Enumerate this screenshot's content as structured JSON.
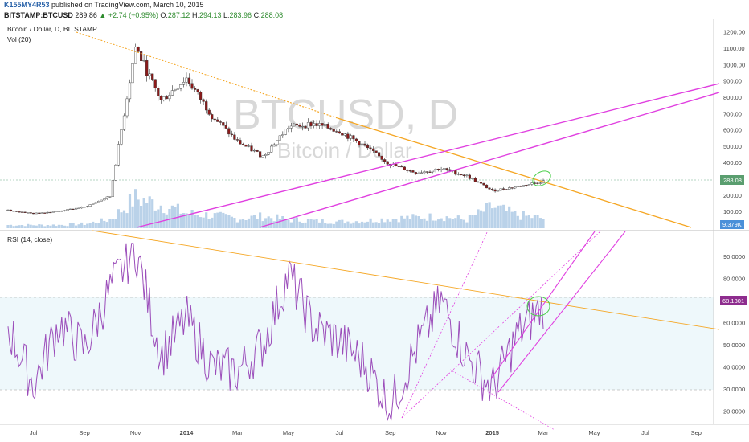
{
  "header": {
    "publisher": "K155MY4R53",
    "published_text": "published on TradingView.com, March 10, 2015",
    "symbol": "BITSTAMP:BTCUSD",
    "last": "289.86",
    "change": "+2.74 (+0.95%)",
    "open_label": "O:",
    "open": "287.12",
    "high_label": "H:",
    "high": "294.13",
    "low_label": "L:",
    "low": "283.96",
    "close_label": "C:",
    "close": "288.08"
  },
  "price_pane": {
    "title": "Bitcoin / Dollar, D, BITSTAMP",
    "vol_label": "Vol (20)",
    "watermark_symbol": "BTCUSD, D",
    "watermark_name": "Bitcoin / Dollar",
    "last_price_tag": "288.08",
    "volume_tag": "9.379K",
    "y_ticks": [
      "1200.00",
      "1100.00",
      "1000.00",
      "900.00",
      "800.00",
      "700.00",
      "600.00",
      "500.00",
      "400.00",
      "300.00",
      "200.00",
      "100.00"
    ]
  },
  "rsi_pane": {
    "title": "RSI (14, close)",
    "last_value_tag": "68.1301",
    "y_ticks": [
      "90.0000",
      "80.0000",
      "70.0000",
      "60.0000",
      "50.0000",
      "40.0000",
      "30.0000",
      "20.0000"
    ]
  },
  "x_ticks": [
    "Jul",
    "Sep",
    "Nov",
    "2014",
    "Mar",
    "May",
    "Jul",
    "Sep",
    "Nov",
    "2015",
    "Mar",
    "May",
    "Jul",
    "Sep"
  ],
  "colors": {
    "up_candle": "#ffffff",
    "down_candle": "#8b1a1a",
    "wick": "#333333",
    "volume": "#a9c7e3",
    "trend_orange": "#f5a623",
    "channel_magenta": "#e040e0",
    "rsi_line": "#9b4dba",
    "rsi_band": "#eef8fb",
    "highlight_circle": "#4ccf4c",
    "price_tag": "#5a9e6f",
    "volume_tag": "#4a90d9",
    "rsi_tag": "#8e2d8e"
  },
  "chart_data": [
    {
      "type": "candlestick",
      "title": "Bitcoin / Dollar, D, BITSTAMP",
      "ylim": [
        0,
        1250
      ],
      "x": [
        "2013-06",
        "2013-07",
        "2013-08",
        "2013-09",
        "2013-10",
        "2013-11",
        "2013-12",
        "2014-01",
        "2014-02",
        "2014-03",
        "2014-04",
        "2014-05",
        "2014-06",
        "2014-07",
        "2014-08",
        "2014-09",
        "2014-10",
        "2014-11",
        "2014-12",
        "2015-01",
        "2015-02",
        "2015-03"
      ],
      "series": [
        {
          "name": "Close",
          "values": [
            110,
            90,
            105,
            130,
            195,
            1110,
            780,
            920,
            690,
            530,
            440,
            620,
            640,
            595,
            500,
            390,
            340,
            365,
            320,
            230,
            255,
            288
          ]
        },
        {
          "name": "Volume (K)",
          "values": [
            3,
            3,
            3,
            4,
            8,
            28,
            22,
            14,
            12,
            9,
            11,
            8,
            7,
            6,
            7,
            9,
            10,
            11,
            8,
            20,
            12,
            9.379
          ]
        }
      ]
    },
    {
      "type": "line",
      "title": "RSI (14, close)",
      "ylim": [
        15,
        97
      ],
      "x": [
        "2013-06",
        "2013-07",
        "2013-08",
        "2013-09",
        "2013-10",
        "2013-11",
        "2013-12",
        "2014-01",
        "2014-02",
        "2014-03",
        "2014-04",
        "2014-05",
        "2014-06",
        "2014-07",
        "2014-08",
        "2014-09",
        "2014-10",
        "2014-11",
        "2014-12",
        "2015-01",
        "2015-02",
        "2015-03"
      ],
      "series": [
        {
          "name": "RSI",
          "values": [
            58,
            32,
            60,
            48,
            75,
            94,
            45,
            62,
            40,
            38,
            50,
            82,
            58,
            52,
            42,
            22,
            48,
            70,
            45,
            30,
            55,
            68
          ]
        }
      ]
    }
  ]
}
